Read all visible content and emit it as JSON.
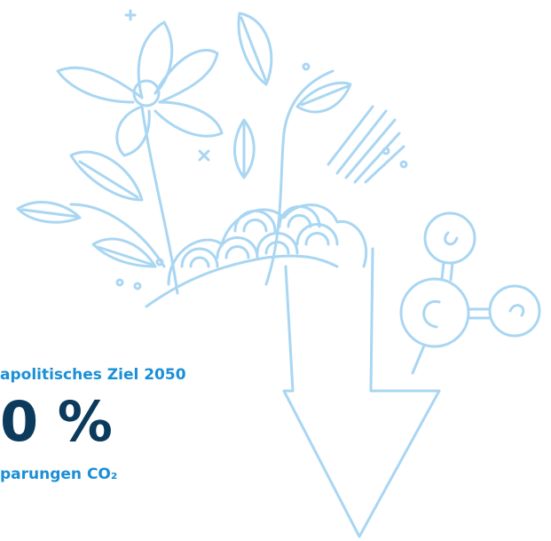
{
  "text": {
    "goal": "apolitisches Ziel 2050",
    "percentage": "0 %",
    "savings": "parungen CO₂"
  }
}
